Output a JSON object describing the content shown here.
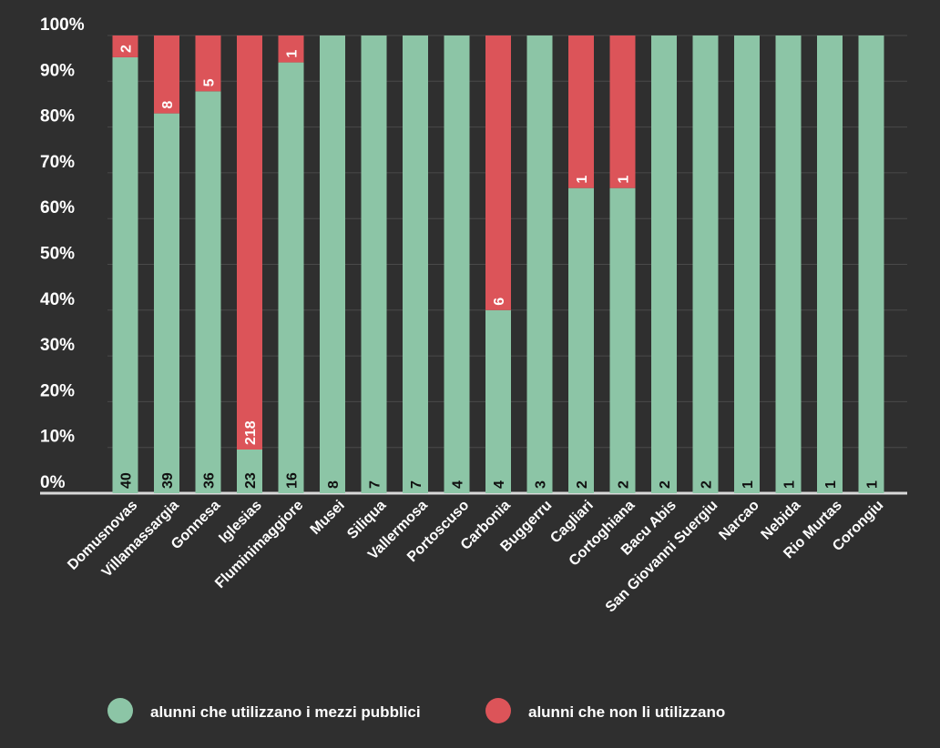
{
  "colors": {
    "background": "#2f2f2f",
    "grid": "#4a4a4a",
    "axis": "#d9d9d9",
    "uses": "#8cc5a6",
    "not_uses": "#dc5459",
    "text": "#ffffff",
    "label_on_green": "#111111",
    "label_on_red": "#ffffff"
  },
  "chart_data": {
    "type": "bar",
    "stacked": "percent",
    "title": "",
    "xlabel": "",
    "ylabel": "",
    "ylim": [
      0,
      100
    ],
    "yticks": [
      "0%",
      "10%",
      "20%",
      "30%",
      "40%",
      "50%",
      "60%",
      "70%",
      "80%",
      "90%",
      "100%"
    ],
    "grid": true,
    "legend_position": "bottom",
    "categories": [
      "Domusnovas",
      "Villamassargia",
      "Gonnesa",
      "Iglesias",
      "Fluminimaggiore",
      "Musei",
      "Siliqua",
      "Vallermosa",
      "Portoscuso",
      "Carbonia",
      "Buggerru",
      "Cagliari",
      "Cortoghiana",
      "Bacu Abis",
      "San Giovanni Suergiu",
      "Narcao",
      "Nebida",
      "Rio Murtas",
      "Corongiu"
    ],
    "series": [
      {
        "name": "alunni che utilizzano i mezzi pubblici",
        "values": [
          40,
          39,
          36,
          23,
          16,
          8,
          7,
          7,
          4,
          4,
          3,
          2,
          2,
          2,
          2,
          1,
          1,
          1,
          1
        ]
      },
      {
        "name": "alunni che non li utilizzano",
        "values": [
          2,
          8,
          5,
          218,
          1,
          0,
          0,
          0,
          0,
          6,
          0,
          1,
          1,
          0,
          0,
          0,
          0,
          0,
          0
        ]
      }
    ]
  }
}
